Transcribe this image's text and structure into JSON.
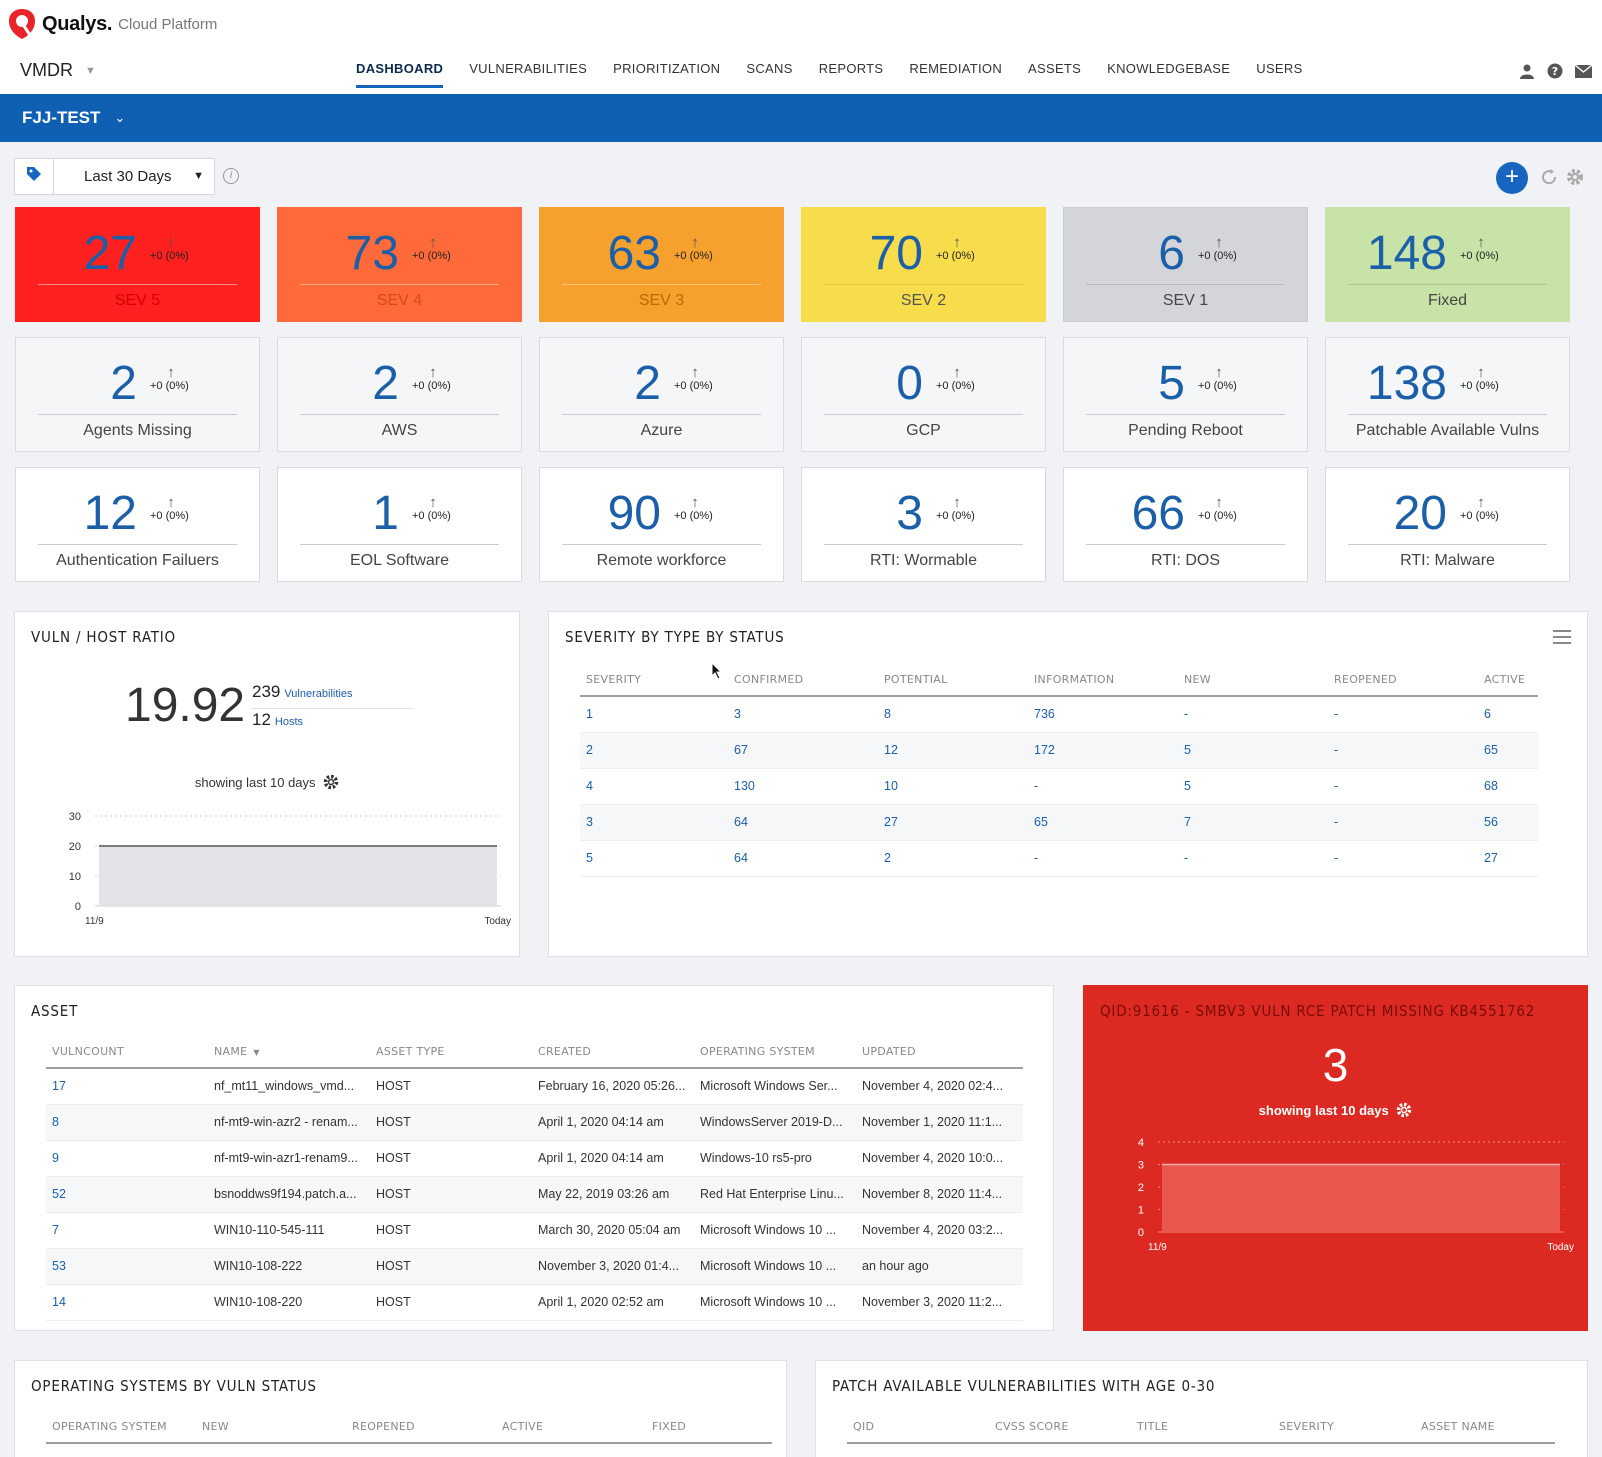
{
  "brand": {
    "name": "Qualys.",
    "sub": "Cloud Platform"
  },
  "app": {
    "name": "VMDR"
  },
  "nav": [
    {
      "label": "DASHBOARD"
    },
    {
      "label": "VULNERABILITIES"
    },
    {
      "label": "PRIORITIZATION"
    },
    {
      "label": "SCANS"
    },
    {
      "label": "REPORTS"
    },
    {
      "label": "REMEDIATION"
    },
    {
      "label": "ASSETS"
    },
    {
      "label": "KNOWLEDGEBASE"
    },
    {
      "label": "USERS"
    }
  ],
  "dashboard": {
    "name": "FJJ-TEST"
  },
  "filter": {
    "range": "Last 30 Days"
  },
  "tiles": [
    {
      "value": "27",
      "delta": "+0 (0%)",
      "label": "SEV 5"
    },
    {
      "value": "73",
      "delta": "+0 (0%)",
      "label": "SEV 4"
    },
    {
      "value": "63",
      "delta": "+0 (0%)",
      "label": "SEV 3"
    },
    {
      "value": "70",
      "delta": "+0 (0%)",
      "label": "SEV 2"
    },
    {
      "value": "6",
      "delta": "+0 (0%)",
      "label": "SEV 1"
    },
    {
      "value": "148",
      "delta": "+0 (0%)",
      "label": "Fixed"
    },
    {
      "value": "2",
      "delta": "+0 (0%)",
      "label": "Agents Missing"
    },
    {
      "value": "2",
      "delta": "+0 (0%)",
      "label": "AWS"
    },
    {
      "value": "2",
      "delta": "+0 (0%)",
      "label": "Azure"
    },
    {
      "value": "0",
      "delta": "+0 (0%)",
      "label": "GCP"
    },
    {
      "value": "5",
      "delta": "+0 (0%)",
      "label": "Pending Reboot"
    },
    {
      "value": "138",
      "delta": "+0 (0%)",
      "label": "Patchable Available Vulns"
    },
    {
      "value": "12",
      "delta": "+0 (0%)",
      "label": "Authentication Failuers"
    },
    {
      "value": "1",
      "delta": "+0 (0%)",
      "label": "EOL Software"
    },
    {
      "value": "90",
      "delta": "+0 (0%)",
      "label": "Remote workforce"
    },
    {
      "value": "3",
      "delta": "+0 (0%)",
      "label": "RTI: Wormable"
    },
    {
      "value": "66",
      "delta": "+0 (0%)",
      "label": "RTI: DOS"
    },
    {
      "value": "20",
      "delta": "+0 (0%)",
      "label": "RTI: Malware"
    }
  ],
  "ratio": {
    "title": "VULN / HOST RATIO",
    "value": "19.92",
    "vulns": "239",
    "vulns_label": "Vulnerabilities",
    "hosts": "12",
    "hosts_label": "Hosts",
    "showing": "showing last 10 days"
  },
  "chart_data": [
    {
      "type": "area",
      "x": [
        "11/9",
        "Today"
      ],
      "values": [
        20,
        20
      ],
      "yticks": [
        0,
        10,
        20,
        30
      ],
      "ylim": [
        0,
        30
      ],
      "grid": true,
      "color": "#e2e3e6"
    },
    {
      "type": "area",
      "x": [
        "11/9",
        "Today"
      ],
      "values": [
        3,
        3
      ],
      "yticks": [
        0,
        1,
        2,
        3,
        4
      ],
      "ylim": [
        0,
        4
      ],
      "grid": true,
      "color": "#e8564e"
    }
  ],
  "severity": {
    "title": "SEVERITY BY TYPE BY STATUS",
    "columns": [
      "SEVERITY",
      "CONFIRMED",
      "POTENTIAL",
      "INFORMATION",
      "NEW",
      "REOPENED",
      "ACTIVE"
    ],
    "rows": [
      [
        "1",
        "3",
        "8",
        "736",
        "-",
        "-",
        "6"
      ],
      [
        "2",
        "67",
        "12",
        "172",
        "5",
        "-",
        "65"
      ],
      [
        "4",
        "130",
        "10",
        "-",
        "5",
        "-",
        "68"
      ],
      [
        "3",
        "64",
        "27",
        "65",
        "7",
        "-",
        "56"
      ],
      [
        "5",
        "64",
        "2",
        "-",
        "-",
        "-",
        "27"
      ]
    ]
  },
  "asset": {
    "title": "ASSET",
    "columns": [
      "VULNCOUNT",
      "NAME",
      "ASSET TYPE",
      "CREATED",
      "OPERATING SYSTEM",
      "UPDATED"
    ],
    "rows": [
      [
        "17",
        "nf_mt11_windows_vmd...",
        "HOST",
        "February 16, 2020 05:26...",
        "Microsoft Windows Ser...",
        "November 4, 2020 02:4..."
      ],
      [
        "8",
        "nf-mt9-win-azr2 - renam...",
        "HOST",
        "April 1, 2020 04:14 am",
        "WindowsServer 2019-D...",
        "November 1, 2020 11:1..."
      ],
      [
        "9",
        "nf-mt9-win-azr1-renam9...",
        "HOST",
        "April 1, 2020 04:14 am",
        "Windows-10 rs5-pro",
        "November 4, 2020 10:0..."
      ],
      [
        "52",
        "bsnoddws9f194.patch.a...",
        "HOST",
        "May 22, 2019 03:26 am",
        "Red Hat Enterprise Linu...",
        "November 8, 2020 11:4..."
      ],
      [
        "7",
        "WIN10-110-545-111",
        "HOST",
        "March 30, 2020 05:04 am",
        "Microsoft Windows 10 ...",
        "November 4, 2020 03:2..."
      ],
      [
        "53",
        "WIN10-108-222",
        "HOST",
        "November 3, 2020 01:4...",
        "Microsoft Windows 10 ...",
        "an hour ago"
      ],
      [
        "14",
        "WIN10-108-220",
        "HOST",
        "April 1, 2020 02:52 am",
        "Microsoft Windows 10 ...",
        "November 3, 2020 11:2..."
      ]
    ]
  },
  "qid": {
    "title": "QID:91616 - SMBV3 VULN RCE PATCH MISSING KB4551762",
    "value": "3",
    "showing": "showing last 10 days"
  },
  "os_status": {
    "title": "OPERATING SYSTEMS BY VULN STATUS",
    "columns": [
      "OPERATING SYSTEM",
      "NEW",
      "REOPENED",
      "ACTIVE",
      "FIXED"
    ]
  },
  "patch": {
    "title": "PATCH AVAILABLE VULNERABILITIES WITH AGE 0-30",
    "columns": [
      "QID",
      "CVSS SCORE",
      "TITLE",
      "SEVERITY",
      "ASSET NAME"
    ]
  }
}
